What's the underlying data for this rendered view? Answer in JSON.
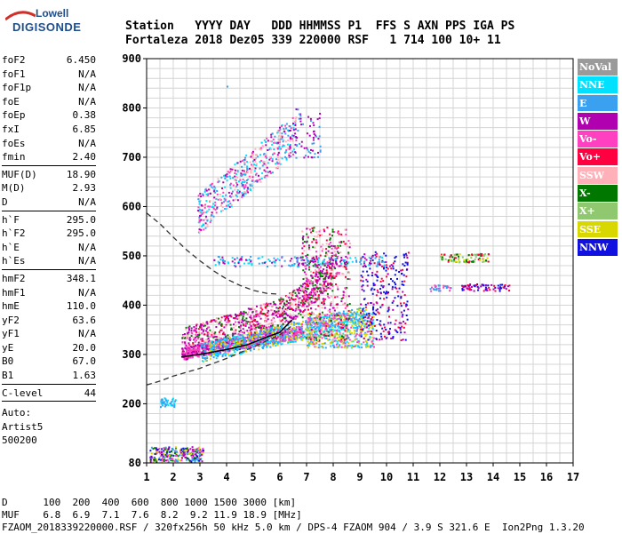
{
  "logo": {
    "line1": "Lowell",
    "line2": "DIGISONDE"
  },
  "header": {
    "row1": "Station   YYYY DAY   DDD HHMMSS P1  FFS S AXN PPS IGA PS",
    "row2": "Fortaleza 2018 Dez05 339 220000 RSF   1 714 100 10+ 11"
  },
  "params": {
    "group1": [
      {
        "k": "foF2",
        "v": "6.450"
      },
      {
        "k": "foF1",
        "v": "N/A"
      },
      {
        "k": "foF1p",
        "v": "N/A"
      },
      {
        "k": "foE",
        "v": "N/A"
      },
      {
        "k": "foEp",
        "v": "0.38"
      },
      {
        "k": "fxI",
        "v": "6.85"
      },
      {
        "k": "foEs",
        "v": "N/A"
      },
      {
        "k": "fmin",
        "v": "2.40"
      }
    ],
    "group2": [
      {
        "k": "MUF(D)",
        "v": "18.90"
      },
      {
        "k": "M(D)",
        "v": "2.93"
      },
      {
        "k": "D",
        "v": "N/A"
      }
    ],
    "group3": [
      {
        "k": "h`F",
        "v": "295.0"
      },
      {
        "k": "h`F2",
        "v": "295.0"
      },
      {
        "k": "h`E",
        "v": "N/A"
      },
      {
        "k": "h`Es",
        "v": "N/A"
      }
    ],
    "group4": [
      {
        "k": "hmF2",
        "v": "348.1"
      },
      {
        "k": "hmF1",
        "v": "N/A"
      },
      {
        "k": "hmE",
        "v": "110.0"
      },
      {
        "k": "yF2",
        "v": "63.6"
      },
      {
        "k": "yF1",
        "v": "N/A"
      },
      {
        "k": "yE",
        "v": "20.0"
      },
      {
        "k": "B0",
        "v": "67.0"
      },
      {
        "k": "B1",
        "v": "1.63"
      }
    ],
    "group5": [
      {
        "k": "C-level",
        "v": "44"
      }
    ],
    "auto": [
      "Auto:",
      "Artist5",
      "500200"
    ]
  },
  "legend": [
    {
      "label": "NoVal",
      "color": "#9a9a9a"
    },
    {
      "label": "NNE",
      "color": "#00e0ff"
    },
    {
      "label": "E",
      "color": "#3aa0f0"
    },
    {
      "label": "W",
      "color": "#b000b0"
    },
    {
      "label": "Vo-",
      "color": "#ff40c0"
    },
    {
      "label": "Vo+",
      "color": "#ff0040"
    },
    {
      "label": "SSW",
      "color": "#ffb0b8"
    },
    {
      "label": "X-",
      "color": "#007800"
    },
    {
      "label": "X+",
      "color": "#90c870"
    },
    {
      "label": "SSE",
      "color": "#d8d800"
    },
    {
      "label": "NNW",
      "color": "#1010e0"
    }
  ],
  "bottom": {
    "row1": "D      100  200  400  600  800 1000 1500 3000 [km]",
    "row2": "MUF    6.8  6.9  7.1  7.6  8.2  9.2 11.9 18.9 [MHz]",
    "row3": "FZAOM_2018339220000.RSF / 320fx256h 50 kHz 5.0 km / DPS-4 FZAOM 904 / 3.9 S 321.6 E  Ion2Png 1.3.20"
  },
  "chart_data": {
    "type": "scatter",
    "xlim": [
      1,
      17
    ],
    "ylim": [
      80,
      900
    ],
    "x_ticks": [
      1,
      2,
      3,
      4,
      5,
      6,
      7,
      8,
      9,
      10,
      11,
      12,
      13,
      14,
      15,
      16,
      17
    ],
    "y_ticks": [
      80,
      200,
      300,
      400,
      500,
      600,
      700,
      800,
      900
    ],
    "grid": true,
    "legend_position": "right",
    "trace_clusters": [
      {
        "name": "F2 o-trace (Vo-/W)",
        "x": [
          2.4,
          7.0
        ],
        "y": [
          295,
          400
        ],
        "x_end": 8.0,
        "y_end": 480
      },
      {
        "name": "F2 x-trace",
        "x": [
          3.0,
          9.2
        ],
        "y": [
          290,
          380
        ]
      },
      {
        "name": "E-range",
        "x": [
          1.2,
          3.0
        ],
        "y": [
          84,
          120
        ]
      },
      {
        "name": "2nd hop",
        "x": [
          3.0,
          6.7
        ],
        "y": [
          550,
          790
        ]
      },
      {
        "name": "Satellite traces",
        "x": [
          12.0,
          14.5
        ],
        "y": [
          430,
          505
        ]
      }
    ],
    "profile_curve": [
      [
        2.3,
        295
      ],
      [
        3.0,
        300
      ],
      [
        4.0,
        310
      ],
      [
        4.8,
        320
      ],
      [
        5.5,
        335
      ],
      [
        6.0,
        345
      ],
      [
        6.45,
        370
      ]
    ],
    "dashed_curve": [
      [
        1.0,
        587
      ],
      [
        1.5,
        565
      ],
      [
        2.0,
        538
      ],
      [
        2.5,
        512
      ],
      [
        3.0,
        490
      ],
      [
        3.5,
        470
      ],
      [
        4.0,
        453
      ],
      [
        4.5,
        440
      ],
      [
        5.0,
        430
      ],
      [
        5.5,
        424
      ],
      [
        6.0,
        422
      ]
    ],
    "dashed_lower": [
      [
        1.0,
        238
      ],
      [
        1.5,
        246
      ],
      [
        2.0,
        256
      ],
      [
        3.0,
        272
      ],
      [
        4.0,
        292
      ],
      [
        5.0,
        315
      ],
      [
        6.0,
        340
      ],
      [
        6.5,
        360
      ]
    ]
  }
}
